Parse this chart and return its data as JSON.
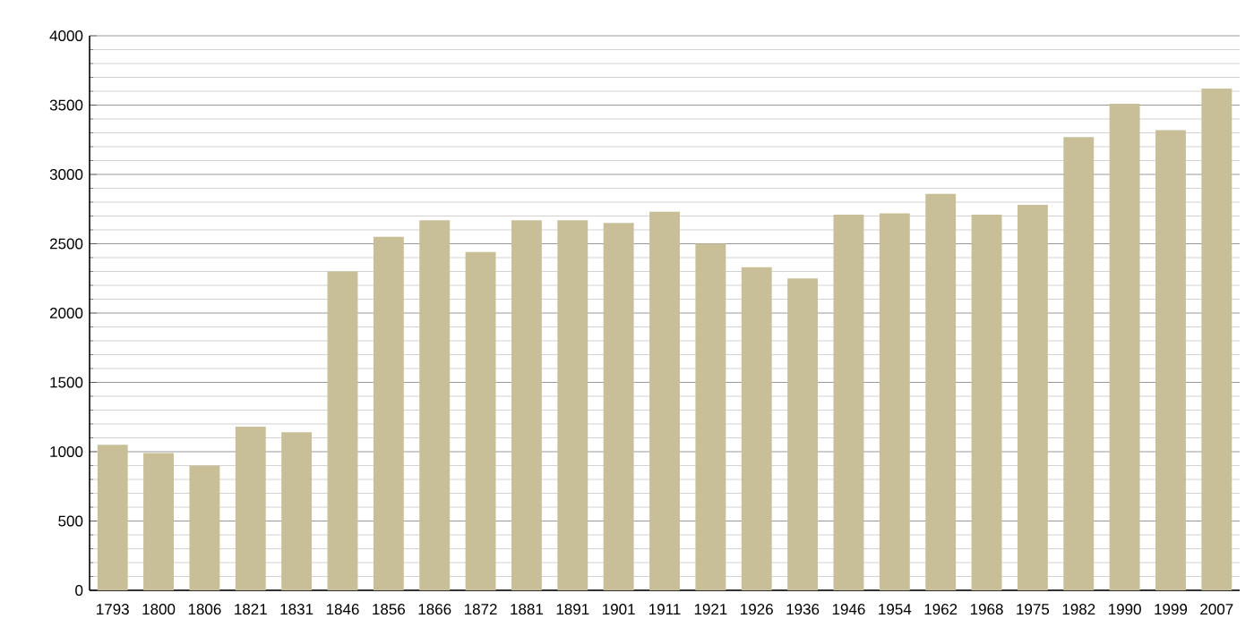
{
  "chart_data": {
    "type": "bar",
    "categories": [
      "1793",
      "1800",
      "1806",
      "1821",
      "1831",
      "1846",
      "1856",
      "1866",
      "1872",
      "1881",
      "1891",
      "1901",
      "1911",
      "1921",
      "1926",
      "1936",
      "1946",
      "1954",
      "1962",
      "1968",
      "1975",
      "1982",
      "1990",
      "1999",
      "2007"
    ],
    "values": [
      1050,
      990,
      900,
      1180,
      1140,
      2300,
      2550,
      2670,
      2440,
      2670,
      2670,
      2650,
      2730,
      2500,
      2330,
      2250,
      2710,
      2720,
      2860,
      2710,
      2780,
      3270,
      3510,
      3320,
      3620
    ],
    "color": "#c8bf98",
    "ylim": [
      0,
      4000
    ],
    "yticks": [
      0,
      500,
      1000,
      1500,
      2000,
      2500,
      3000,
      3500,
      4000
    ],
    "grid": "y"
  }
}
